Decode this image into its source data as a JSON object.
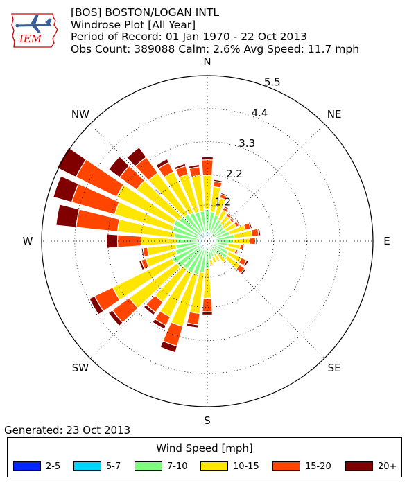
{
  "header": {
    "station": "[BOS] BOSTON/LOGAN INTL",
    "plot_title": "Windrose Plot [All Year]",
    "period": "Period of Record: 01 Jan 1970 - 22 Oct 2013",
    "obs": "Obs Count: 389088 Calm: 2.6% Avg Speed: 11.7 mph"
  },
  "logo": {
    "text": "IEM",
    "color": "#cc0000"
  },
  "footer": {
    "generated": "Generated: 23 Oct 2013"
  },
  "chart_data": {
    "type": "windrose",
    "direction_labels": [
      "N",
      "NE",
      "E",
      "SE",
      "S",
      "SW",
      "W",
      "NW"
    ],
    "radial_ticks": [
      1.2,
      2.2,
      3.3,
      4.4,
      5.5
    ],
    "rmax": 5.5,
    "directions_deg": [
      0,
      10,
      20,
      30,
      40,
      50,
      60,
      70,
      80,
      90,
      100,
      110,
      120,
      130,
      140,
      150,
      160,
      170,
      180,
      190,
      200,
      210,
      220,
      230,
      240,
      250,
      260,
      270,
      280,
      290,
      300,
      310,
      320,
      330,
      340,
      350
    ],
    "legend_title": "Wind Speed [mph]",
    "bins": [
      {
        "label": "2-5",
        "color": "#0028ff"
      },
      {
        "label": "5-7",
        "color": "#00d4ff"
      },
      {
        "label": "7-10",
        "color": "#7cff7a"
      },
      {
        "label": "10-15",
        "color": "#ffe600"
      },
      {
        "label": "15-20",
        "color": "#ff4500"
      },
      {
        "label": "20+",
        "color": "#800000"
      }
    ],
    "cumulative_percent": [
      [
        0.1,
        0.32,
        1.05,
        2.18,
        2.7,
        2.8
      ],
      [
        0.09,
        0.28,
        0.98,
        1.82,
        2.0,
        2.06
      ],
      [
        0.09,
        0.28,
        0.9,
        1.5,
        1.62,
        1.67
      ],
      [
        0.09,
        0.26,
        0.8,
        1.15,
        1.25,
        1.3
      ],
      [
        0.08,
        0.25,
        0.72,
        1.05,
        1.14,
        1.18
      ],
      [
        0.08,
        0.24,
        0.68,
        1.02,
        1.1,
        1.14
      ],
      [
        0.08,
        0.24,
        0.7,
        1.07,
        1.17,
        1.21
      ],
      [
        0.08,
        0.25,
        0.78,
        1.32,
        1.5,
        1.55
      ],
      [
        0.09,
        0.27,
        0.9,
        1.5,
        1.72,
        1.78
      ],
      [
        0.09,
        0.26,
        0.85,
        1.4,
        1.6,
        1.64
      ],
      [
        0.08,
        0.24,
        0.7,
        1.1,
        1.22,
        1.25
      ],
      [
        0.08,
        0.22,
        0.62,
        0.98,
        1.06,
        1.09
      ],
      [
        0.08,
        0.24,
        0.78,
        1.26,
        1.45,
        1.52
      ],
      [
        0.08,
        0.25,
        0.82,
        1.33,
        1.54,
        1.6
      ],
      [
        0.07,
        0.2,
        0.55,
        0.88,
        0.93,
        0.95
      ],
      [
        0.07,
        0.19,
        0.48,
        0.72,
        0.76,
        0.78
      ],
      [
        0.07,
        0.2,
        0.55,
        0.75,
        0.78,
        0.8
      ],
      [
        0.08,
        0.22,
        0.62,
        0.8,
        0.84,
        0.86
      ],
      [
        0.09,
        0.27,
        0.9,
        1.9,
        2.35,
        2.45
      ],
      [
        0.1,
        0.3,
        1.05,
        2.42,
        2.8,
        2.9
      ],
      [
        0.1,
        0.3,
        1.15,
        2.95,
        3.63,
        3.85
      ],
      [
        0.1,
        0.3,
        1.18,
        2.8,
        3.12,
        3.25
      ],
      [
        0.1,
        0.3,
        1.15,
        2.5,
        2.93,
        3.04
      ],
      [
        0.1,
        0.3,
        1.25,
        3.2,
        3.9,
        4.06
      ],
      [
        0.1,
        0.3,
        1.3,
        3.5,
        4.16,
        4.36
      ],
      [
        0.09,
        0.28,
        1.1,
        2.12,
        2.28,
        2.36
      ],
      [
        0.09,
        0.27,
        1.05,
        2.0,
        2.15,
        2.2
      ],
      [
        0.09,
        0.28,
        1.0,
        2.2,
        2.98,
        3.35
      ],
      [
        0.1,
        0.3,
        1.1,
        3.0,
        4.38,
        5.05
      ],
      [
        0.1,
        0.31,
        1.2,
        3.2,
        4.68,
        5.32
      ],
      [
        0.1,
        0.32,
        1.25,
        3.35,
        4.85,
        5.55
      ],
      [
        0.1,
        0.3,
        1.15,
        2.9,
        3.6,
        4.05
      ],
      [
        0.1,
        0.3,
        1.1,
        2.8,
        3.45,
        3.85
      ],
      [
        0.1,
        0.3,
        1.05,
        2.56,
        2.91,
        3.04
      ],
      [
        0.1,
        0.3,
        1.0,
        2.31,
        2.6,
        2.68
      ],
      [
        0.1,
        0.3,
        1.0,
        2.2,
        2.48,
        2.56
      ]
    ]
  }
}
